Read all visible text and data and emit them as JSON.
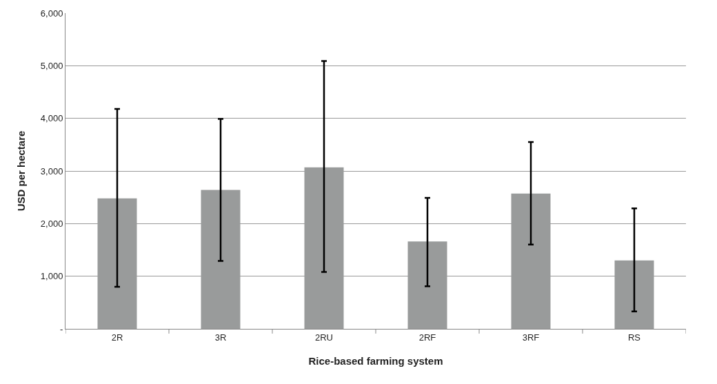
{
  "chart_data": {
    "type": "bar",
    "xlabel": "Rice-based farming system",
    "ylabel": "USD per hectare",
    "categories": [
      "2R",
      "3R",
      "2RU",
      "2RF",
      "3RF",
      "RS"
    ],
    "values": [
      2480,
      2640,
      3070,
      1660,
      2570,
      1300
    ],
    "errors": [
      [
        800,
        4180
      ],
      [
        1290,
        3990
      ],
      [
        1080,
        5090
      ],
      [
        810,
        2490
      ],
      [
        1600,
        3550
      ],
      [
        330,
        2290
      ]
    ],
    "color": "#999b9b",
    "ylim": [
      0,
      6000
    ],
    "yticks": [
      {
        "value": 0,
        "label": "-"
      },
      {
        "value": 1000,
        "label": "1,000"
      },
      {
        "value": 2000,
        "label": "2,000"
      },
      {
        "value": 3000,
        "label": "3,000"
      },
      {
        "value": 4000,
        "label": "4,000"
      },
      {
        "value": 5000,
        "label": "5,000"
      },
      {
        "value": 6000,
        "label": "6,000"
      }
    ],
    "grid": "y",
    "legend": false
  }
}
